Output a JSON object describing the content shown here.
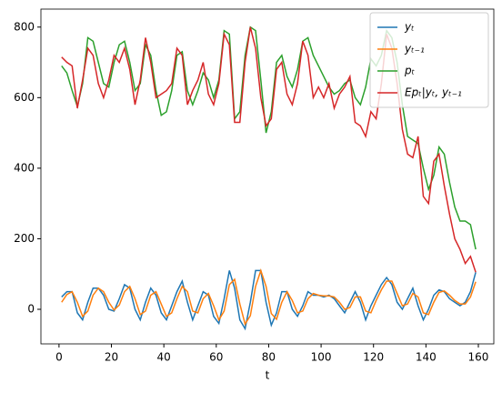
{
  "chart_data": {
    "type": "line",
    "xlabel": "t",
    "x": [
      1,
      3,
      5,
      7,
      9,
      11,
      13,
      15,
      17,
      19,
      21,
      23,
      25,
      27,
      29,
      31,
      33,
      35,
      37,
      39,
      41,
      43,
      45,
      47,
      49,
      51,
      53,
      55,
      57,
      59,
      61,
      63,
      65,
      67,
      69,
      71,
      73,
      75,
      77,
      79,
      81,
      83,
      85,
      87,
      89,
      91,
      93,
      95,
      97,
      99,
      101,
      103,
      105,
      107,
      109,
      111,
      113,
      115,
      117,
      119,
      121,
      123,
      125,
      127,
      129,
      131,
      133,
      135,
      137,
      139,
      141,
      143,
      145,
      147,
      149,
      151,
      153,
      155,
      157,
      159
    ],
    "series": [
      {
        "name": "yₜ",
        "color": "#1f77b4",
        "values": [
          35,
          50,
          50,
          -10,
          -30,
          20,
          60,
          60,
          40,
          0,
          -5,
          30,
          70,
          60,
          0,
          -30,
          20,
          60,
          40,
          -10,
          -30,
          10,
          50,
          80,
          20,
          -30,
          10,
          50,
          40,
          -20,
          -40,
          30,
          110,
          60,
          -30,
          -55,
          20,
          110,
          110,
          20,
          -45,
          -10,
          50,
          50,
          0,
          -20,
          10,
          50,
          40,
          40,
          35,
          40,
          30,
          10,
          -10,
          20,
          50,
          20,
          -30,
          10,
          40,
          70,
          90,
          70,
          20,
          0,
          30,
          60,
          10,
          -30,
          0,
          40,
          55,
          50,
          30,
          20,
          10,
          20,
          50,
          105
        ]
      },
      {
        "name": "yₜ₋₁",
        "color": "#ff7f0e",
        "values": [
          20,
          42,
          50,
          20,
          -20,
          -5,
          40,
          60,
          50,
          20,
          -2,
          12,
          50,
          65,
          30,
          -15,
          -5,
          40,
          50,
          15,
          -20,
          -10,
          30,
          65,
          50,
          -5,
          -10,
          30,
          45,
          10,
          -30,
          -5,
          70,
          85,
          15,
          -42,
          -18,
          65,
          110,
          65,
          -12,
          -28,
          20,
          50,
          25,
          -10,
          -5,
          30,
          45,
          40,
          38,
          38,
          35,
          20,
          0,
          5,
          35,
          35,
          -5,
          -10,
          25,
          55,
          80,
          80,
          45,
          10,
          15,
          45,
          35,
          -10,
          -15,
          20,
          48,
          52,
          40,
          25,
          15,
          15,
          35,
          78
        ]
      },
      {
        "name": "pₜ",
        "color": "#2ca02c",
        "values": [
          690,
          670,
          620,
          575,
          640,
          770,
          760,
          700,
          640,
          630,
          700,
          750,
          760,
          700,
          620,
          640,
          750,
          720,
          620,
          550,
          560,
          620,
          720,
          730,
          620,
          580,
          620,
          670,
          650,
          600,
          650,
          790,
          780,
          540,
          560,
          720,
          800,
          790,
          650,
          500,
          560,
          700,
          720,
          660,
          630,
          680,
          760,
          770,
          720,
          690,
          660,
          630,
          610,
          620,
          640,
          650,
          600,
          580,
          630,
          710,
          690,
          720,
          790,
          770,
          700,
          580,
          490,
          480,
          470,
          400,
          340,
          380,
          460,
          440,
          360,
          290,
          250,
          250,
          240,
          170
        ]
      },
      {
        "name": "Epₜ|yₜ, yₜ₋₁",
        "color": "#d62728",
        "values": [
          715,
          700,
          690,
          570,
          650,
          740,
          720,
          640,
          600,
          650,
          720,
          700,
          740,
          680,
          580,
          650,
          770,
          700,
          600,
          610,
          620,
          640,
          740,
          720,
          580,
          620,
          650,
          700,
          610,
          580,
          640,
          780,
          750,
          530,
          530,
          700,
          800,
          740,
          600,
          520,
          540,
          680,
          700,
          610,
          580,
          640,
          760,
          720,
          600,
          630,
          600,
          640,
          570,
          610,
          630,
          660,
          530,
          520,
          490,
          560,
          540,
          640,
          780,
          740,
          640,
          510,
          440,
          430,
          490,
          320,
          300,
          420,
          440,
          350,
          270,
          200,
          170,
          130,
          150,
          105
        ]
      }
    ],
    "xlim": [
      -6.9,
      165.9
    ],
    "xticks": [
      0,
      20,
      40,
      60,
      80,
      100,
      120,
      140,
      160
    ],
    "ylim": [
      -98,
      851
    ],
    "yticks": [
      0,
      200,
      400,
      600,
      800
    ],
    "legend": "upper right"
  }
}
